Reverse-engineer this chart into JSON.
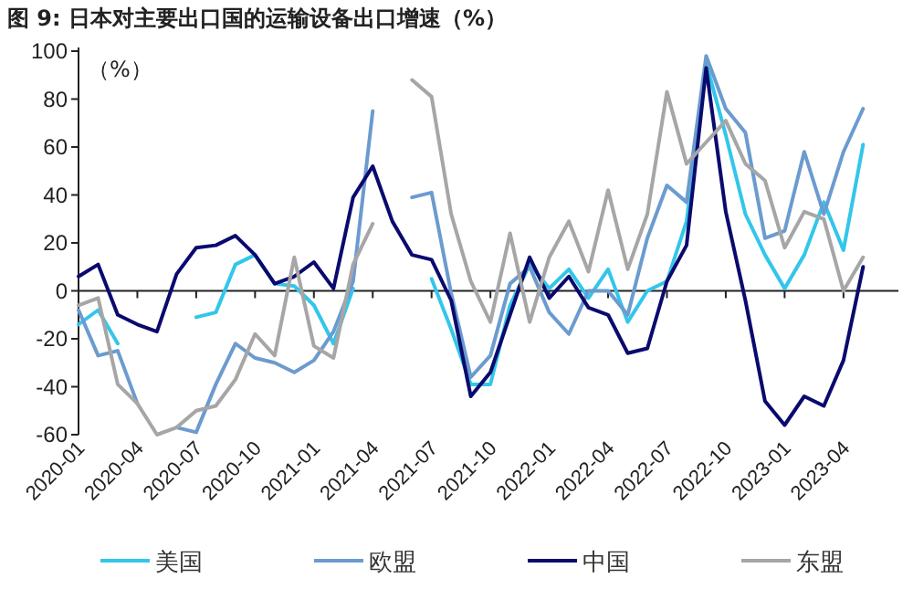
{
  "chart_data": {
    "type": "line",
    "title": "图 9: 日本对主要出口国的运输设备出口增速（%）",
    "ylabel": "（%）",
    "categories": [
      "2020-01",
      null,
      null,
      "2020-04",
      null,
      null,
      "2020-07",
      null,
      null,
      "2020-10",
      null,
      null,
      "2021-01",
      null,
      null,
      "2021-04",
      null,
      null,
      "2021-07",
      null,
      null,
      "2021-10",
      null,
      null,
      "2022-01",
      null,
      null,
      "2022-04",
      null,
      null,
      "2022-07",
      null,
      null,
      "2022-10",
      null,
      null,
      "2023-01",
      null,
      null,
      "2023-04",
      null
    ],
    "series": [
      {
        "name": "美国",
        "color": "#33c6ea",
        "values": [
          -14,
          -8,
          -22,
          null,
          null,
          null,
          -11,
          -9,
          11,
          15,
          3,
          2,
          -6,
          -22,
          1,
          null,
          null,
          null,
          5,
          -16,
          -39,
          -39,
          -6,
          11,
          1,
          9,
          -3,
          9,
          -13,
          0,
          4,
          29,
          95,
          65,
          32,
          15,
          1,
          15,
          37,
          17,
          61
        ]
      },
      {
        "name": "欧盟",
        "color": "#6b9bcf",
        "values": [
          -8,
          -27,
          -25,
          -47,
          null,
          -57,
          -59,
          -39,
          -22,
          -28,
          -30,
          -34,
          -29,
          -17,
          4,
          75,
          null,
          39,
          41,
          -1,
          -36,
          -27,
          3,
          10,
          -9,
          -18,
          0,
          0,
          -10,
          22,
          44,
          37,
          98,
          76,
          66,
          22,
          25,
          58,
          32,
          58,
          76
        ]
      },
      {
        "name": "中国",
        "color": "#0a0a6e",
        "values": [
          6,
          11,
          -10,
          -14,
          -17,
          7,
          18,
          19,
          23,
          15,
          3,
          6,
          12,
          1,
          39,
          52,
          29,
          15,
          13,
          -4,
          -44,
          -34,
          -10,
          14,
          -3,
          6,
          -7,
          -10,
          -26,
          -24,
          4,
          19,
          93,
          33,
          -4,
          -46,
          -56,
          -44,
          -48,
          -29,
          10
        ]
      },
      {
        "name": "东盟",
        "color": "#a6a6a6",
        "values": [
          -6,
          -3,
          -39,
          -47,
          -60,
          -57,
          -50,
          -48,
          -37,
          -18,
          -27,
          14,
          -23,
          -28,
          11,
          28,
          null,
          88,
          81,
          32,
          4,
          -13,
          24,
          -13,
          14,
          29,
          8,
          42,
          9,
          32,
          83,
          53,
          62,
          71,
          53,
          46,
          18,
          33,
          30,
          0,
          14
        ]
      }
    ],
    "ylim": [
      -60,
      100
    ],
    "yticks": [
      -60,
      -40,
      -20,
      0,
      20,
      40,
      60,
      80,
      100
    ],
    "legend": "bottom",
    "line_style": "solid",
    "marker": "none"
  }
}
